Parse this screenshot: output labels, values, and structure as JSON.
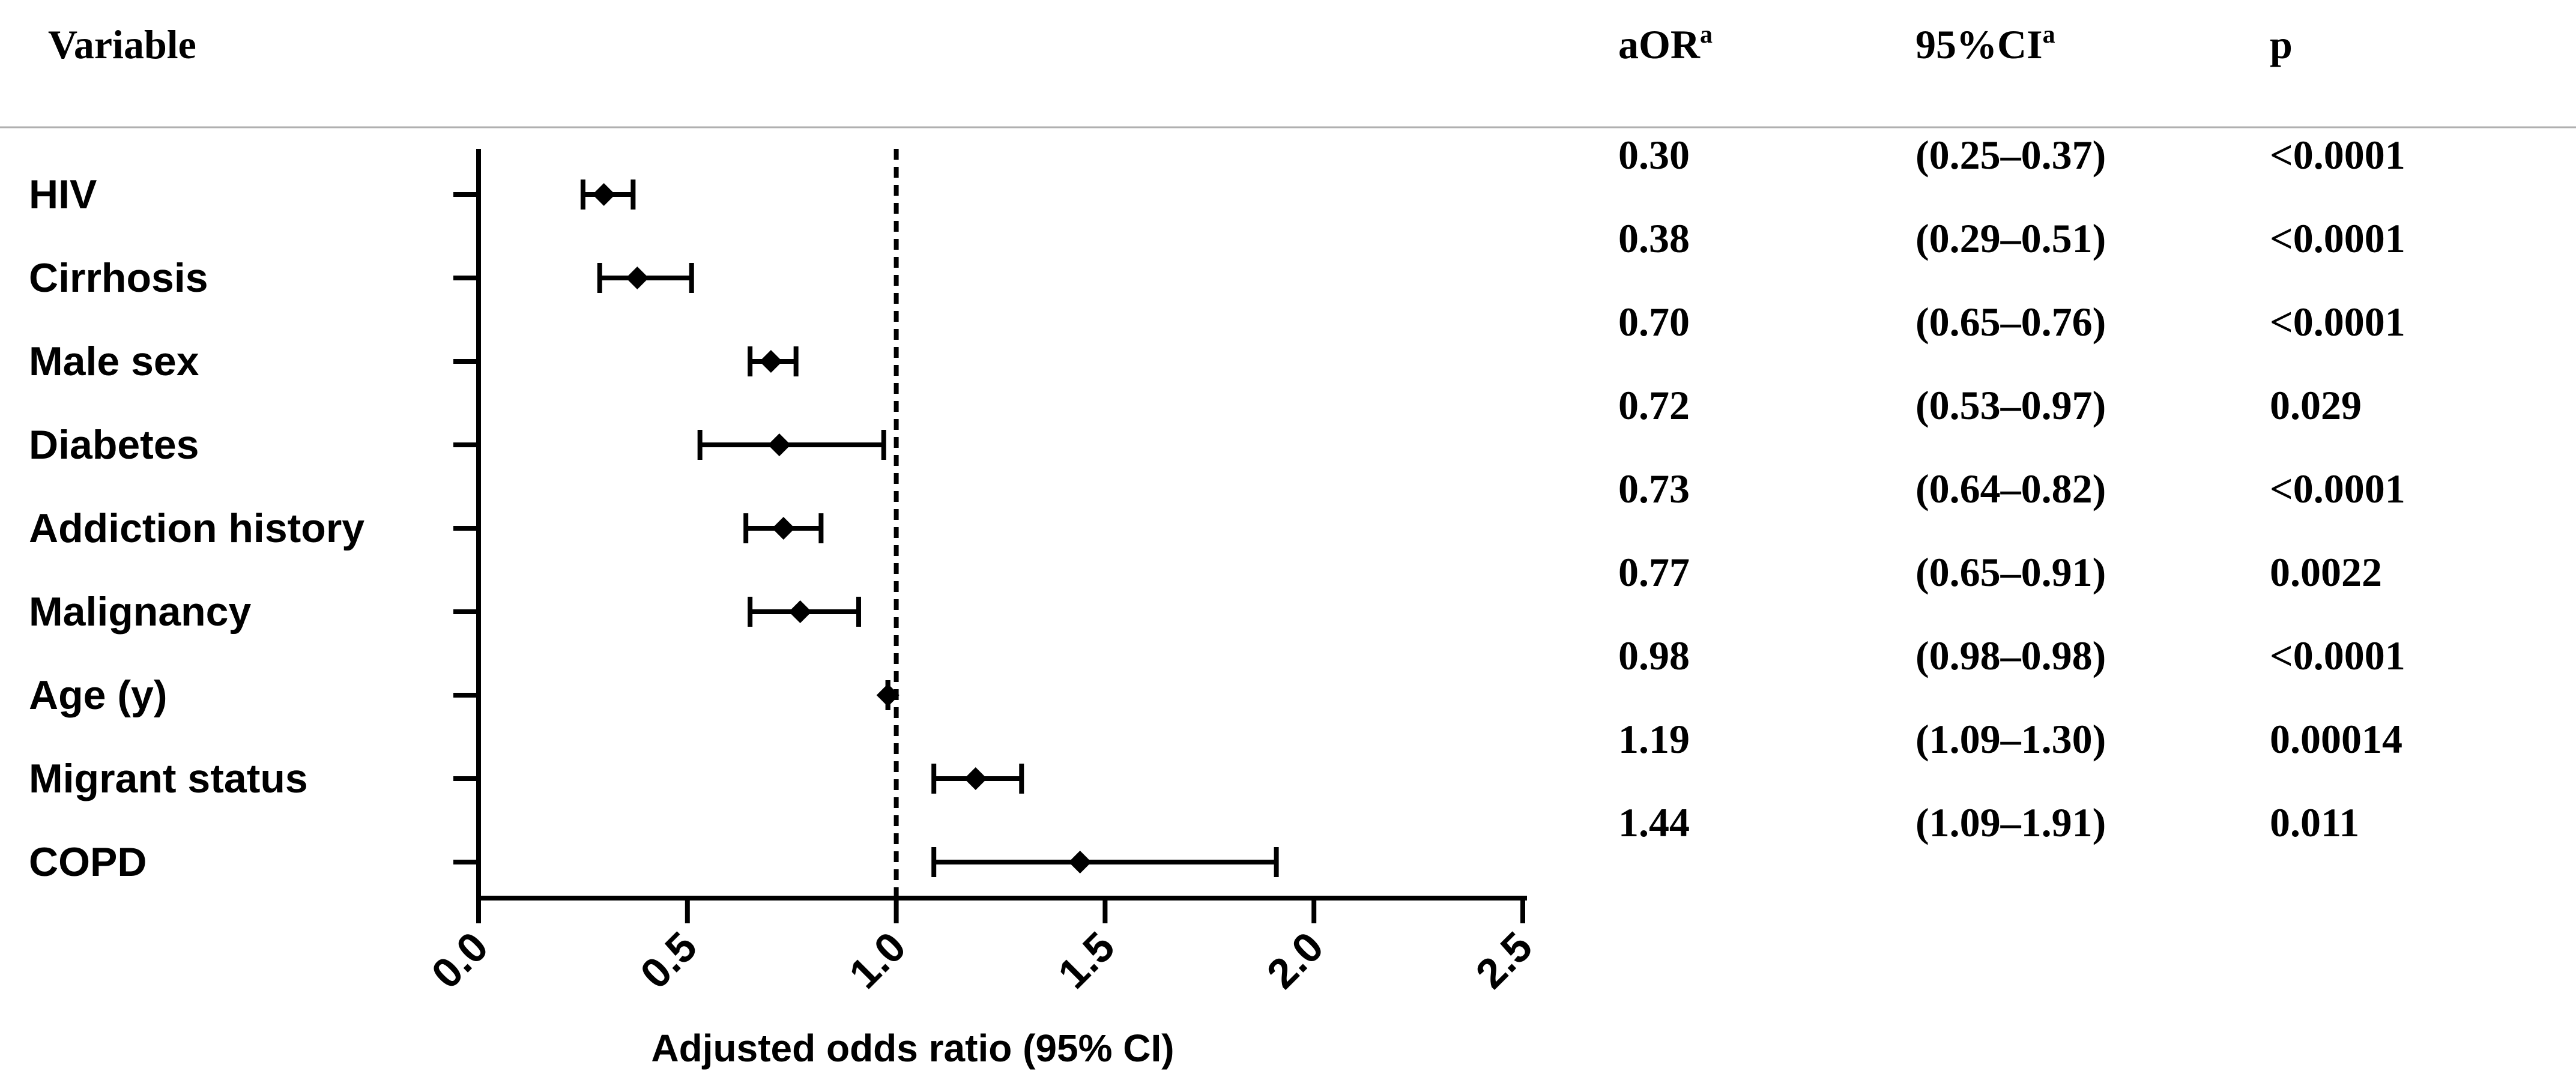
{
  "header": {
    "variable": "Variable",
    "aor": "aOR",
    "aor_sup": "a",
    "ci": "95%CI",
    "ci_sup": "a",
    "p": "p"
  },
  "chart_data": {
    "type": "forest",
    "xlabel": "Adjusted odds ratio (95% CI)",
    "xlim": [
      0.0,
      2.5
    ],
    "x_ticks": [
      "0.0",
      "0.5",
      "1.0",
      "1.5",
      "2.0",
      "2.5"
    ],
    "reference_line": 1.0,
    "rows": [
      {
        "label": "HIV",
        "aor": 0.3,
        "lo": 0.25,
        "hi": 0.37,
        "aor_text": "0.30",
        "ci_text": "(0.25–0.37)",
        "p_text": "<0.0001"
      },
      {
        "label": "Cirrhosis",
        "aor": 0.38,
        "lo": 0.29,
        "hi": 0.51,
        "aor_text": "0.38",
        "ci_text": "(0.29–0.51)",
        "p_text": "<0.0001"
      },
      {
        "label": "Male sex",
        "aor": 0.7,
        "lo": 0.65,
        "hi": 0.76,
        "aor_text": "0.70",
        "ci_text": "(0.65–0.76)",
        "p_text": "<0.0001"
      },
      {
        "label": "Diabetes",
        "aor": 0.72,
        "lo": 0.53,
        "hi": 0.97,
        "aor_text": "0.72",
        "ci_text": "(0.53–0.97)",
        "p_text": "0.029"
      },
      {
        "label": "Addiction history",
        "aor": 0.73,
        "lo": 0.64,
        "hi": 0.82,
        "aor_text": "0.73",
        "ci_text": "(0.64–0.82)",
        "p_text": "<0.0001"
      },
      {
        "label": "Malignancy",
        "aor": 0.77,
        "lo": 0.65,
        "hi": 0.91,
        "aor_text": "0.77",
        "ci_text": "(0.65–0.91)",
        "p_text": "0.0022"
      },
      {
        "label": "Age (y)",
        "aor": 0.98,
        "lo": 0.98,
        "hi": 0.98,
        "aor_text": "0.98",
        "ci_text": "(0.98–0.98)",
        "p_text": "<0.0001"
      },
      {
        "label": "Migrant status",
        "aor": 1.19,
        "lo": 1.09,
        "hi": 1.3,
        "aor_text": "1.19",
        "ci_text": "(1.09–1.30)",
        "p_text": "0.00014"
      },
      {
        "label": "COPD",
        "aor": 1.44,
        "lo": 1.09,
        "hi": 1.91,
        "aor_text": "1.44",
        "ci_text": "(1.09–1.91)",
        "p_text": "0.011"
      }
    ]
  }
}
